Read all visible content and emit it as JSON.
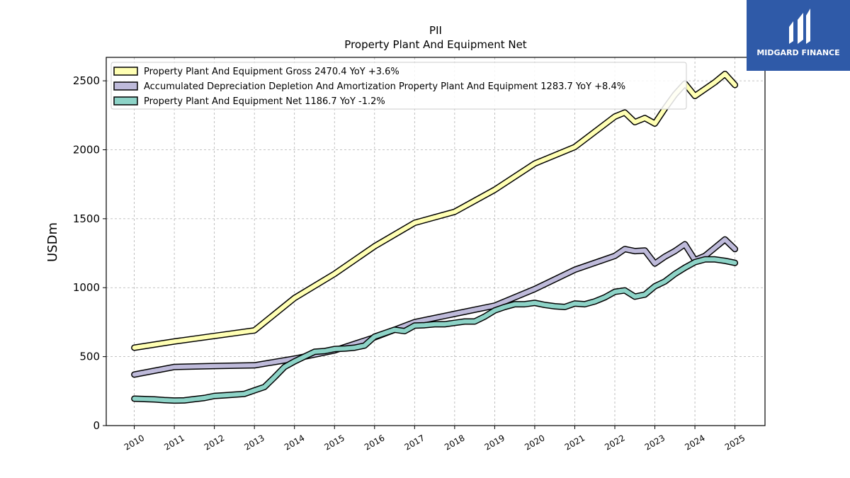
{
  "branding": {
    "logo_text": "MIDGARD FINANCE",
    "logo_color": "#2f5aa8"
  },
  "chart_data": {
    "type": "line",
    "title": "PII",
    "subtitle": "Property Plant And Equipment Net",
    "ylabel": "USDm",
    "xlabel": "",
    "ylim": [
      0,
      2670
    ],
    "xlim": [
      2009.3,
      2025.75
    ],
    "yticks": [
      0,
      500,
      1000,
      1500,
      2000,
      2500
    ],
    "xticks": [
      "2010",
      "2011",
      "2012",
      "2013",
      "2014",
      "2015",
      "2016",
      "2017",
      "2018",
      "2019",
      "2020",
      "2021",
      "2022",
      "2023",
      "2024",
      "2025"
    ],
    "grid": true,
    "legend_position": "top-left",
    "series": [
      {
        "name": "Property Plant And Equipment Gross",
        "legend_label": "Property Plant And Equipment Gross  2470.4 YoY +3.6%",
        "color": "#ffffb3",
        "x": [
          2010,
          2011,
          2012,
          2013,
          2014,
          2015,
          2016,
          2017,
          2018,
          2019,
          2020,
          2021,
          2022.0,
          2022.25,
          2022.5,
          2022.75,
          2023.0,
          2023.25,
          2023.5,
          2023.75,
          2024.0,
          2024.25,
          2024.5,
          2024.75,
          2025.0
        ],
        "values": [
          565,
          610,
          650,
          690,
          925,
          1100,
          1300,
          1470,
          1550,
          1710,
          1900,
          2020,
          2240,
          2270,
          2200,
          2230,
          2190,
          2300,
          2400,
          2480,
          2390,
          2440,
          2490,
          2550,
          2470
        ]
      },
      {
        "name": "Accumulated Depreciation Depletion And Amortization Property Plant And Equipment",
        "legend_label": "Accumulated Depreciation Depletion And Amortization Property Plant And Equipment  1283.7 YoY +8.4%",
        "color": "#bebada",
        "x": [
          2010,
          2011,
          2012,
          2013,
          2014,
          2015,
          2016,
          2017,
          2018,
          2019,
          2020,
          2021,
          2022.0,
          2022.25,
          2022.5,
          2022.75,
          2023.0,
          2023.25,
          2023.5,
          2023.75,
          2024.0,
          2024.25,
          2024.5,
          2024.75,
          2025.0
        ],
        "values": [
          370,
          425,
          432,
          437,
          485,
          545,
          640,
          750,
          810,
          870,
          990,
          1130,
          1230,
          1280,
          1265,
          1270,
          1175,
          1225,
          1265,
          1315,
          1200,
          1230,
          1290,
          1350,
          1280
        ]
      },
      {
        "name": "Property Plant And Equipment Net",
        "legend_label": "Property Plant And Equipment Net  1186.7 YoY -1.2%",
        "color": "#8dd3c7",
        "x": [
          2010,
          2010.5,
          2010.75,
          2011.0,
          2011.25,
          2011.5,
          2011.75,
          2012.0,
          2012.25,
          2012.5,
          2012.75,
          2013.0,
          2013.25,
          2013.5,
          2013.75,
          2014.0,
          2014.25,
          2014.5,
          2014.75,
          2015.0,
          2015.25,
          2015.5,
          2015.75,
          2016.0,
          2016.25,
          2016.5,
          2016.75,
          2017.0,
          2017.25,
          2017.5,
          2017.75,
          2018.0,
          2018.25,
          2018.5,
          2018.75,
          2019.0,
          2019.25,
          2019.5,
          2019.75,
          2020.0,
          2020.25,
          2020.5,
          2020.75,
          2021.0,
          2021.25,
          2021.5,
          2021.75,
          2022.0,
          2022.25,
          2022.5,
          2022.75,
          2023.0,
          2023.25,
          2023.5,
          2023.75,
          2024.0,
          2024.25,
          2024.5,
          2024.75,
          2025.0
        ],
        "values": [
          195,
          190,
          185,
          182,
          183,
          192,
          200,
          215,
          220,
          225,
          230,
          255,
          280,
          350,
          425,
          465,
          500,
          535,
          540,
          555,
          558,
          565,
          580,
          645,
          670,
          695,
          685,
          725,
          728,
          735,
          735,
          745,
          755,
          755,
          790,
          835,
          860,
          880,
          880,
          890,
          875,
          865,
          860,
          885,
          880,
          900,
          930,
          970,
          980,
          935,
          950,
          1010,
          1045,
          1100,
          1145,
          1185,
          1205,
          1205,
          1195,
          1180
        ]
      }
    ]
  }
}
